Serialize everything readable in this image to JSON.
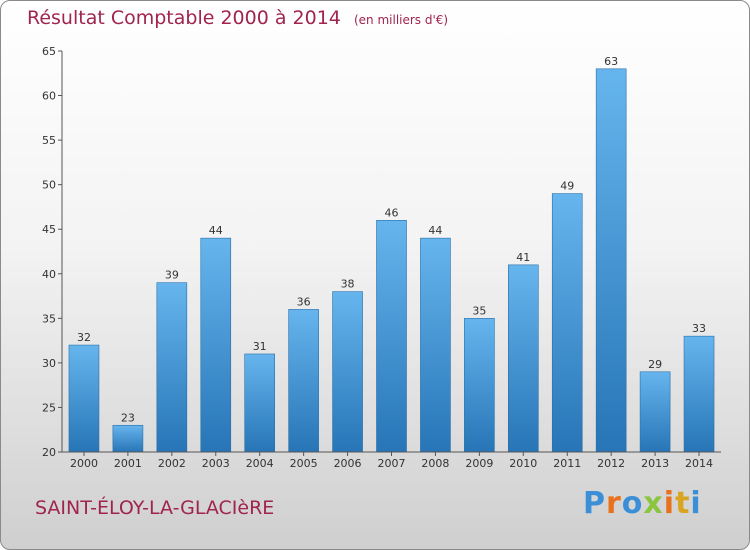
{
  "chart_data": {
    "type": "bar",
    "title": "Résultat Comptable 2000 à 2014",
    "unit_note": "(en milliers d'€)",
    "xlabel": "",
    "ylabel": "",
    "categories": [
      "2000",
      "2001",
      "2002",
      "2003",
      "2004",
      "2005",
      "2006",
      "2007",
      "2008",
      "2009",
      "2010",
      "2011",
      "2012",
      "2013",
      "2014"
    ],
    "values": [
      32,
      23,
      39,
      44,
      31,
      36,
      38,
      46,
      44,
      35,
      41,
      49,
      63,
      29,
      33
    ],
    "ylim": [
      20,
      65
    ],
    "yticks": [
      20,
      25,
      30,
      35,
      40,
      45,
      50,
      55,
      60,
      65
    ],
    "grid": false,
    "legend": "none"
  },
  "footer": {
    "town": "SAINT-ÉLOY-LA-GLACIèRE",
    "brand": "Proxiti"
  },
  "colors": {
    "title": "#a0244e",
    "bar_light": "#66b5ee",
    "bar_dark": "#2775b6",
    "brand_letters": [
      "#3a8fd6",
      "#e8711c",
      "#3a8fd6",
      "#8bc53f",
      "#e8711c",
      "#d9a520",
      "#3a8fd6"
    ]
  }
}
